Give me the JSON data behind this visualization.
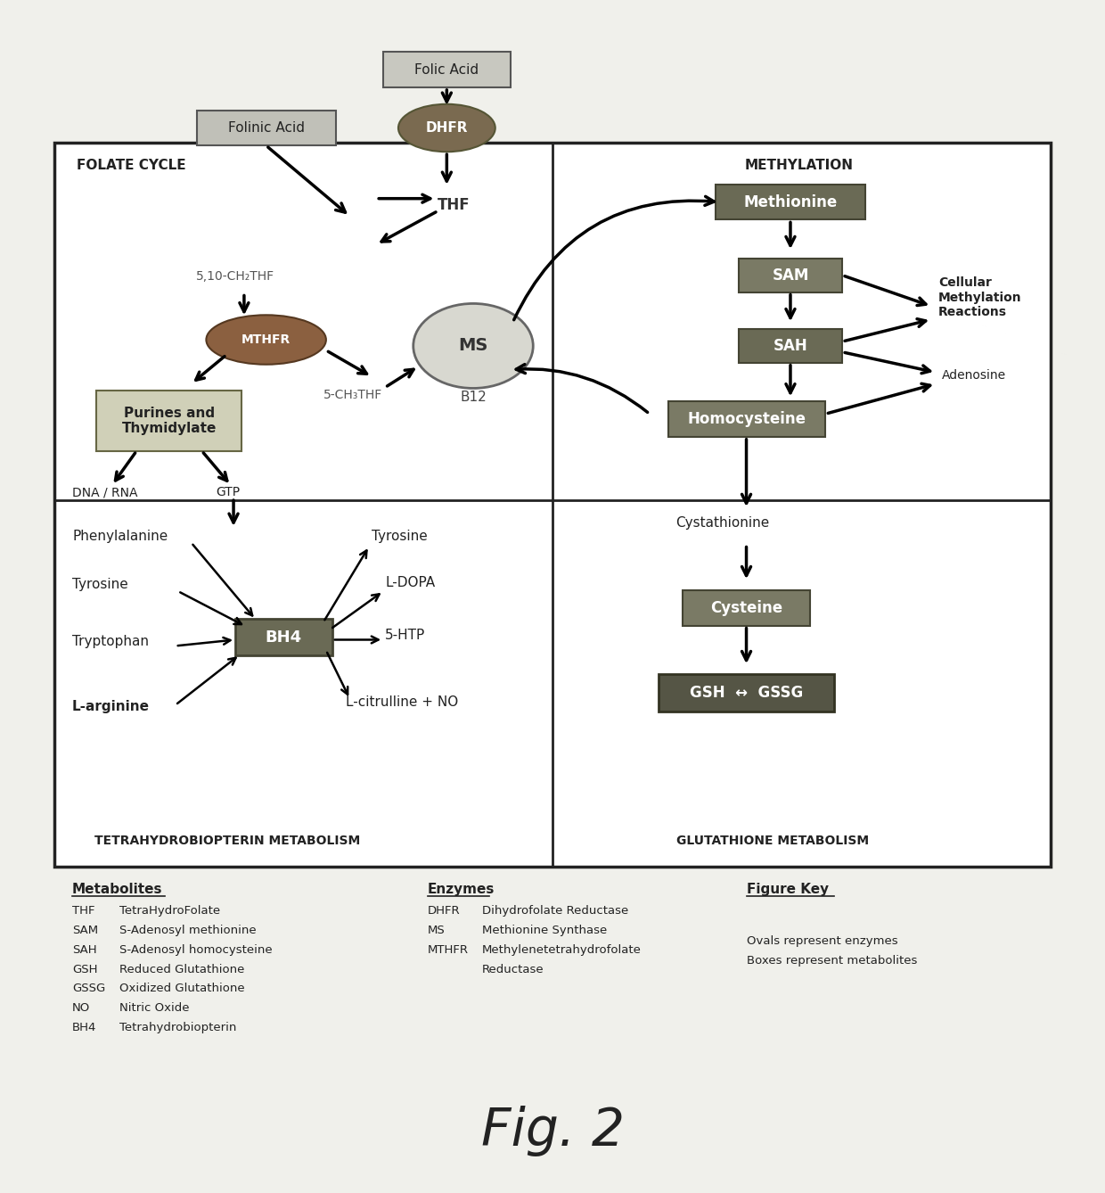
{
  "bg_color": "#f0f0eb",
  "figure_title": "Fig. 2",
  "legend_metabolites": [
    [
      "THF",
      "TetraHydroFolate"
    ],
    [
      "SAM",
      "S-Adenosyl methionine"
    ],
    [
      "SAH",
      "S-Adenosyl homocysteine"
    ],
    [
      "GSH",
      "Reduced Glutathione"
    ],
    [
      "GSSG",
      "Oxidized Glutathione"
    ],
    [
      "NO",
      "Nitric Oxide"
    ],
    [
      "BH4",
      "Tetrahydrobiopterin"
    ]
  ],
  "legend_enzymes": [
    [
      "DHFR",
      "Dihydrofolate Reductase"
    ],
    [
      "MS",
      "Methionine Synthase"
    ],
    [
      "MTHFR",
      "Methylenetetrahydrofolate\nReductase"
    ]
  ],
  "legend_key": [
    "Ovals represent enzymes",
    "Boxes represent metabolites"
  ]
}
